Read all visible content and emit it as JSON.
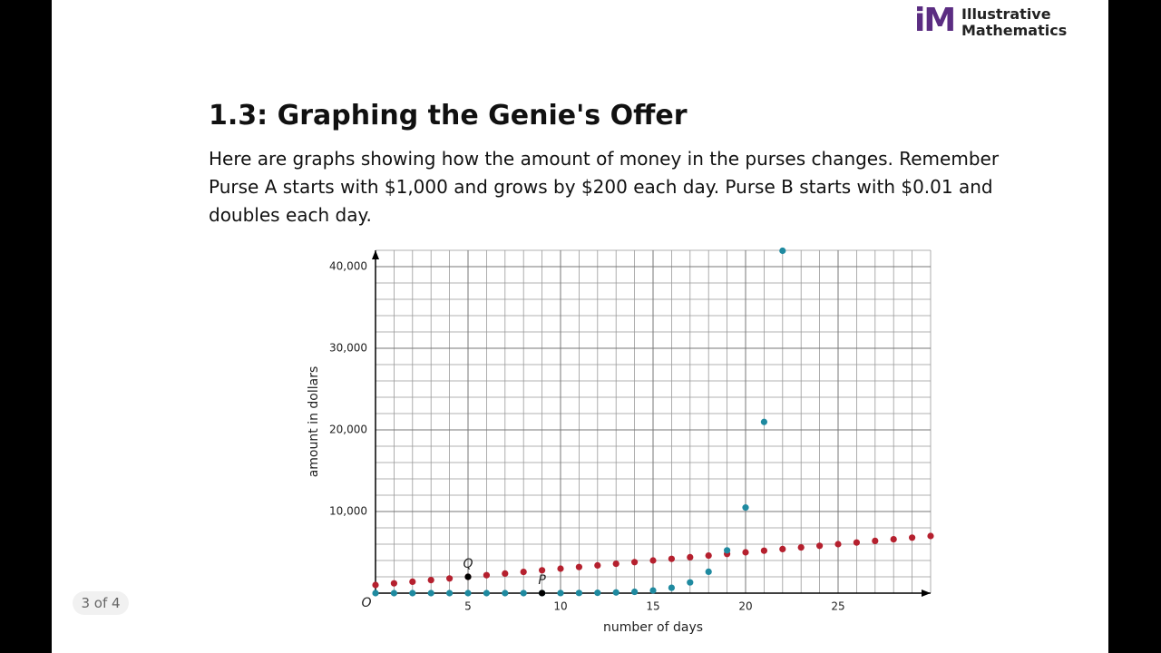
{
  "logo": {
    "mark": "iM",
    "line_1": "Illustrative",
    "line_2": "Mathematics"
  },
  "header": {
    "title": "1.3: Graphing the Genie's Offer"
  },
  "body": {
    "text": "Here are graphs showing how the amount of money in the purses changes. Remember Purse A starts with $1,000 and grows by $200 each day. Purse B starts with $0.01 and doubles each day."
  },
  "slide_counter": "3 of 4",
  "chart_data": {
    "type": "scatter",
    "xlabel": "number of days",
    "ylabel": "amount in dollars",
    "origin_label": "O",
    "xlim": [
      0,
      30
    ],
    "ylim": [
      0,
      42000
    ],
    "xticks": [
      5,
      10,
      15,
      20,
      25
    ],
    "yticks": [
      {
        "value": 10000,
        "label": "10,000"
      },
      {
        "value": 20000,
        "label": "20,000"
      },
      {
        "value": 30000,
        "label": "30,000"
      },
      {
        "value": 40000,
        "label": "40,000"
      }
    ],
    "grid": true,
    "x_minor_step": 1,
    "y_minor_step": 2000,
    "series": [
      {
        "color": "#b5202e",
        "x": [
          0,
          1,
          2,
          3,
          4,
          5,
          6,
          7,
          8,
          9,
          10,
          11,
          12,
          13,
          14,
          15,
          16,
          17,
          18,
          19,
          20,
          21,
          22,
          23,
          24,
          25,
          26,
          27,
          28,
          29,
          30
        ],
        "values": [
          1000,
          1200,
          1400,
          1600,
          1800,
          2000,
          2200,
          2400,
          2600,
          2800,
          3000,
          3200,
          3400,
          3600,
          3800,
          4000,
          4200,
          4400,
          4600,
          4800,
          5000,
          5200,
          5400,
          5600,
          5800,
          6000,
          6200,
          6400,
          6600,
          6800,
          7000
        ]
      },
      {
        "color": "#1f8aa0",
        "x": [
          0,
          1,
          2,
          3,
          4,
          5,
          6,
          7,
          8,
          9,
          10,
          11,
          12,
          13,
          14,
          15,
          16,
          17,
          18,
          19,
          20,
          21,
          22
        ],
        "values": [
          0.01,
          0.02,
          0.04,
          0.08,
          0.16,
          0.32,
          0.64,
          1.28,
          2.56,
          5.12,
          10.24,
          20.48,
          40.96,
          81.92,
          163.84,
          327.68,
          655.36,
          1310.72,
          2621.44,
          5242.88,
          10485.76,
          20971.52,
          41943.04
        ]
      },
      {
        "color": "#000000",
        "x": [
          5
        ],
        "values": [
          2000
        ],
        "labels": [
          "Q"
        ]
      },
      {
        "color": "#000000",
        "x": [
          9
        ],
        "values": [
          5.12
        ],
        "labels": [
          "P"
        ]
      }
    ]
  }
}
